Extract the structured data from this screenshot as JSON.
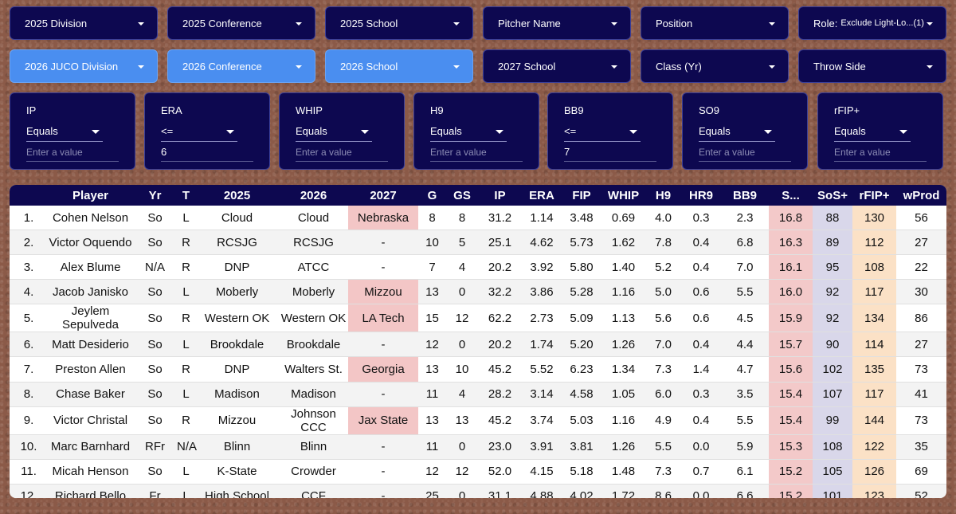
{
  "filters_row1": [
    {
      "label": "2025 Division"
    },
    {
      "label": "2025 Conference"
    },
    {
      "label": "2025 School"
    },
    {
      "label": "Pitcher Name"
    },
    {
      "label": "Position"
    },
    {
      "label": "Role:",
      "selection": "Exclude Light-Lo...(1)"
    }
  ],
  "filters_row2": [
    {
      "label": "2026 JUCO Division",
      "active": true
    },
    {
      "label": "2026 Conference",
      "active": true
    },
    {
      "label": "2026 School",
      "active": true
    },
    {
      "label": "2027 School"
    },
    {
      "label": "Class (Yr)"
    },
    {
      "label": "Throw Side"
    }
  ],
  "numeric_filters": [
    {
      "label": "IP",
      "operator": "Equals",
      "placeholder": "Enter a value"
    },
    {
      "label": "ERA",
      "operator": "<=",
      "value": "6"
    },
    {
      "label": "WHIP",
      "operator": "Equals",
      "placeholder": "Enter a value"
    },
    {
      "label": "H9",
      "operator": "Equals",
      "placeholder": "Enter a value"
    },
    {
      "label": "BB9",
      "operator": "<=",
      "value": "7"
    },
    {
      "label": "SO9",
      "operator": "Equals",
      "placeholder": "Enter a value"
    },
    {
      "label": "rFIP+",
      "operator": "Equals",
      "placeholder": "Enter a value"
    }
  ],
  "table": {
    "headers": [
      "Player",
      "Yr",
      "T",
      "2025",
      "2026",
      "2027",
      "G",
      "GS",
      "IP",
      "ERA",
      "FIP",
      "WHIP",
      "H9",
      "HR9",
      "BB9",
      "S...",
      "SoS+",
      "rFIP+",
      "wProd"
    ],
    "rows": [
      [
        "1.",
        "Cohen Nelson",
        "So",
        "L",
        "Cloud",
        "Cloud",
        "Nebraska",
        "8",
        "8",
        "31.2",
        "1.14",
        "3.48",
        "0.69",
        "4.0",
        "0.3",
        "2.3",
        "16.8",
        "88",
        "130",
        "56"
      ],
      [
        "2.",
        "Victor Oquendo",
        "So",
        "R",
        "RCSJG",
        "RCSJG",
        "-",
        "10",
        "5",
        "25.1",
        "4.62",
        "5.73",
        "1.62",
        "7.8",
        "0.4",
        "6.8",
        "16.3",
        "89",
        "112",
        "27"
      ],
      [
        "3.",
        "Alex Blume",
        "N/A",
        "R",
        "DNP",
        "ATCC",
        "-",
        "7",
        "4",
        "20.2",
        "3.92",
        "5.80",
        "1.40",
        "5.2",
        "0.4",
        "7.0",
        "16.1",
        "95",
        "108",
        "22"
      ],
      [
        "4.",
        "Jacob Janisko",
        "So",
        "L",
        "Moberly",
        "Moberly",
        "Mizzou",
        "13",
        "0",
        "32.2",
        "3.86",
        "5.28",
        "1.16",
        "5.0",
        "0.6",
        "5.5",
        "16.0",
        "92",
        "117",
        "30"
      ],
      [
        "5.",
        "Jeylem Sepulveda",
        "So",
        "R",
        "Western OK",
        "Western OK",
        "LA Tech",
        "15",
        "12",
        "62.2",
        "2.73",
        "5.09",
        "1.13",
        "5.6",
        "0.6",
        "4.5",
        "15.9",
        "92",
        "134",
        "86"
      ],
      [
        "6.",
        "Matt Desiderio",
        "So",
        "L",
        "Brookdale",
        "Brookdale",
        "-",
        "12",
        "0",
        "20.2",
        "1.74",
        "5.20",
        "1.26",
        "7.0",
        "0.4",
        "4.4",
        "15.7",
        "90",
        "114",
        "27"
      ],
      [
        "7.",
        "Preston Allen",
        "So",
        "R",
        "DNP",
        "Walters St.",
        "Georgia",
        "13",
        "10",
        "45.2",
        "5.52",
        "6.23",
        "1.34",
        "7.3",
        "1.4",
        "4.7",
        "15.6",
        "102",
        "135",
        "73"
      ],
      [
        "8.",
        "Chase Baker",
        "So",
        "L",
        "Madison",
        "Madison",
        "-",
        "11",
        "4",
        "28.2",
        "3.14",
        "4.58",
        "1.05",
        "6.0",
        "0.3",
        "3.5",
        "15.4",
        "107",
        "117",
        "41"
      ],
      [
        "9.",
        "Victor Christal",
        "So",
        "R",
        "Mizzou",
        "Johnson CCC",
        "Jax State",
        "13",
        "13",
        "45.2",
        "3.74",
        "5.03",
        "1.16",
        "4.9",
        "0.4",
        "5.5",
        "15.4",
        "99",
        "144",
        "73"
      ],
      [
        "10.",
        "Marc Barnhard",
        "RFr",
        "N/A",
        "Blinn",
        "Blinn",
        "-",
        "11",
        "0",
        "23.0",
        "3.91",
        "3.81",
        "1.26",
        "5.5",
        "0.0",
        "5.9",
        "15.3",
        "108",
        "122",
        "35"
      ],
      [
        "11.",
        "Micah Henson",
        "So",
        "L",
        "K-State",
        "Crowder",
        "-",
        "12",
        "12",
        "52.0",
        "4.15",
        "5.18",
        "1.48",
        "7.3",
        "0.7",
        "6.1",
        "15.2",
        "105",
        "126",
        "69"
      ],
      [
        "12.",
        "Richard Bello",
        "Fr",
        "L",
        "High School",
        "CCF",
        "-",
        "25",
        "0",
        "31.1",
        "4.88",
        "4.02",
        "1.72",
        "8.6",
        "0.0",
        "6.6",
        "15.2",
        "101",
        "123",
        "52"
      ]
    ]
  }
}
